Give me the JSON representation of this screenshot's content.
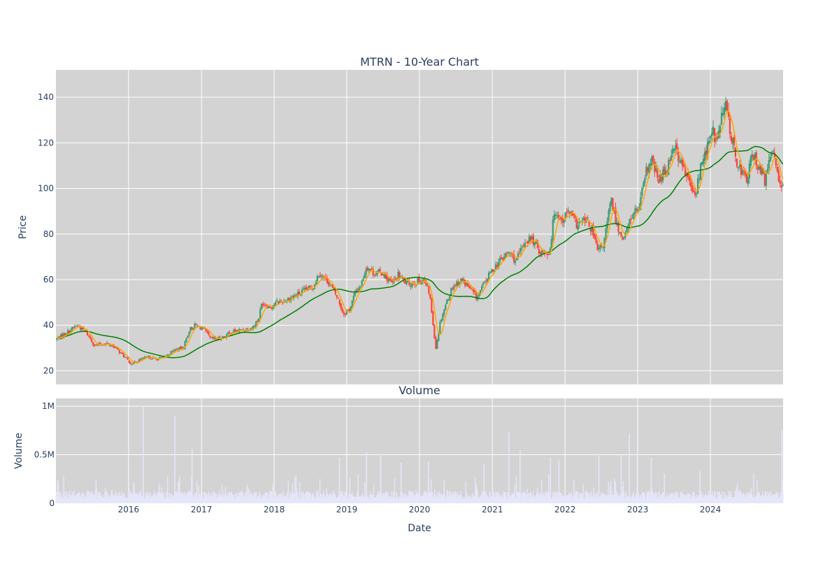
{
  "chart_data": {
    "type": "candlestick",
    "title": "MTRN - 10-Year Chart",
    "xlabel": "Date",
    "x_range": [
      "2015-01-01",
      "2024-12-31"
    ],
    "x_ticks": [
      "2016",
      "2017",
      "2018",
      "2019",
      "2020",
      "2021",
      "2022",
      "2023",
      "2024"
    ],
    "colors": {
      "increasing": "#3d9970",
      "decreasing": "#ff4136",
      "ma_short": "#ffa500",
      "ma_long": "#008000",
      "volume": "#e6e6fa",
      "plot_bg": "#d3d3d3",
      "grid": "#ffffff",
      "text": "#2a3f5f"
    },
    "price_panel": {
      "ylabel": "Price",
      "ylim": [
        14,
        152
      ],
      "y_ticks": [
        20,
        40,
        60,
        80,
        100,
        120,
        140
      ],
      "series": [
        {
          "type": "candlestick"
        },
        {
          "type": "moving-average-short"
        },
        {
          "type": "moving-average-long"
        }
      ],
      "close_anchors": [
        [
          "2015-01-05",
          34
        ],
        [
          "2015-03-01",
          37
        ],
        [
          "2015-04-15",
          40
        ],
        [
          "2015-06-01",
          37
        ],
        [
          "2015-07-15",
          31
        ],
        [
          "2015-09-01",
          32
        ],
        [
          "2015-10-15",
          31
        ],
        [
          "2015-12-01",
          27
        ],
        [
          "2016-01-15",
          23
        ],
        [
          "2016-03-01",
          25
        ],
        [
          "2016-04-15",
          26
        ],
        [
          "2016-05-15",
          25
        ],
        [
          "2016-07-01",
          26
        ],
        [
          "2016-08-15",
          29
        ],
        [
          "2016-10-01",
          30
        ],
        [
          "2016-11-01",
          38
        ],
        [
          "2016-12-01",
          40
        ],
        [
          "2017-01-15",
          38
        ],
        [
          "2017-02-15",
          34
        ],
        [
          "2017-04-01",
          34
        ],
        [
          "2017-06-01",
          37
        ],
        [
          "2017-08-01",
          38
        ],
        [
          "2017-09-15",
          39
        ],
        [
          "2017-10-15",
          43
        ],
        [
          "2017-11-01",
          50
        ],
        [
          "2017-12-15",
          48
        ],
        [
          "2018-01-15",
          50
        ],
        [
          "2018-03-01",
          51
        ],
        [
          "2018-04-15",
          53
        ],
        [
          "2018-06-01",
          55
        ],
        [
          "2018-07-15",
          57
        ],
        [
          "2018-08-15",
          63
        ],
        [
          "2018-10-01",
          59
        ],
        [
          "2018-11-15",
          52
        ],
        [
          "2018-12-15",
          45
        ],
        [
          "2019-01-15",
          47
        ],
        [
          "2019-02-15",
          55
        ],
        [
          "2019-03-15",
          58
        ],
        [
          "2019-04-10",
          66
        ],
        [
          "2019-05-15",
          63
        ],
        [
          "2019-07-01",
          63
        ],
        [
          "2019-08-15",
          58
        ],
        [
          "2019-09-15",
          62
        ],
        [
          "2019-11-01",
          58
        ],
        [
          "2019-12-15",
          59
        ],
        [
          "2020-01-20",
          60
        ],
        [
          "2020-02-20",
          54
        ],
        [
          "2020-03-23",
          30
        ],
        [
          "2020-04-15",
          42
        ],
        [
          "2020-05-15",
          50
        ],
        [
          "2020-06-15",
          57
        ],
        [
          "2020-08-01",
          60
        ],
        [
          "2020-09-01",
          57
        ],
        [
          "2020-10-15",
          52
        ],
        [
          "2020-12-01",
          60
        ],
        [
          "2021-01-15",
          66
        ],
        [
          "2021-03-01",
          70
        ],
        [
          "2021-03-25",
          72
        ],
        [
          "2021-05-01",
          68
        ],
        [
          "2021-06-15",
          77
        ],
        [
          "2021-07-15",
          78
        ],
        [
          "2021-09-01",
          72
        ],
        [
          "2021-10-15",
          72
        ],
        [
          "2021-11-10",
          91
        ],
        [
          "2021-12-15",
          86
        ],
        [
          "2022-01-20",
          90
        ],
        [
          "2022-03-01",
          84
        ],
        [
          "2022-04-15",
          86
        ],
        [
          "2022-05-15",
          82
        ],
        [
          "2022-06-15",
          72
        ],
        [
          "2022-07-15",
          76
        ],
        [
          "2022-08-20",
          95
        ],
        [
          "2022-09-25",
          82
        ],
        [
          "2022-10-25",
          78
        ],
        [
          "2022-12-01",
          88
        ],
        [
          "2023-01-10",
          92
        ],
        [
          "2023-02-15",
          108
        ],
        [
          "2023-03-15",
          112
        ],
        [
          "2023-04-15",
          103
        ],
        [
          "2023-06-01",
          110
        ],
        [
          "2023-07-01",
          120
        ],
        [
          "2023-08-01",
          112
        ],
        [
          "2023-09-01",
          106
        ],
        [
          "2023-10-15",
          96
        ],
        [
          "2023-11-15",
          110
        ],
        [
          "2023-12-15",
          118
        ],
        [
          "2024-01-15",
          125
        ],
        [
          "2024-02-01",
          120
        ],
        [
          "2024-03-01",
          133
        ],
        [
          "2024-03-20",
          136
        ],
        [
          "2024-05-01",
          115
        ],
        [
          "2024-06-01",
          108
        ],
        [
          "2024-07-01",
          104
        ],
        [
          "2024-08-01",
          115
        ],
        [
          "2024-09-01",
          110
        ],
        [
          "2024-10-01",
          103
        ],
        [
          "2024-11-10",
          118
        ],
        [
          "2024-12-10",
          105
        ],
        [
          "2024-12-31",
          100
        ]
      ]
    },
    "volume_panel": {
      "title": "Volume",
      "ylabel": "Volume",
      "ylim": [
        0,
        1080000
      ],
      "y_ticks": [
        {
          "value": 0,
          "label": "0"
        },
        {
          "value": 500000,
          "label": "0.5M"
        },
        {
          "value": 1000000,
          "label": "1M"
        }
      ],
      "spikes": [
        [
          "2016-03-15",
          1000000
        ],
        [
          "2016-08-20",
          900000
        ],
        [
          "2016-11-15",
          560000
        ],
        [
          "2018-11-25",
          470000
        ],
        [
          "2019-04-10",
          530000
        ],
        [
          "2019-06-20",
          490000
        ],
        [
          "2019-10-01",
          420000
        ],
        [
          "2020-02-15",
          430000
        ],
        [
          "2020-11-20",
          400000
        ],
        [
          "2021-03-25",
          730000
        ],
        [
          "2021-05-20",
          540000
        ],
        [
          "2021-10-20",
          470000
        ],
        [
          "2021-12-01",
          450000
        ],
        [
          "2022-06-20",
          490000
        ],
        [
          "2022-10-10",
          500000
        ],
        [
          "2022-11-20",
          710000
        ],
        [
          "2022-12-30",
          520000
        ],
        [
          "2023-03-10",
          470000
        ],
        [
          "2023-05-15",
          310000
        ],
        [
          "2023-11-10",
          330000
        ],
        [
          "2024-12-25",
          750000
        ]
      ]
    }
  }
}
